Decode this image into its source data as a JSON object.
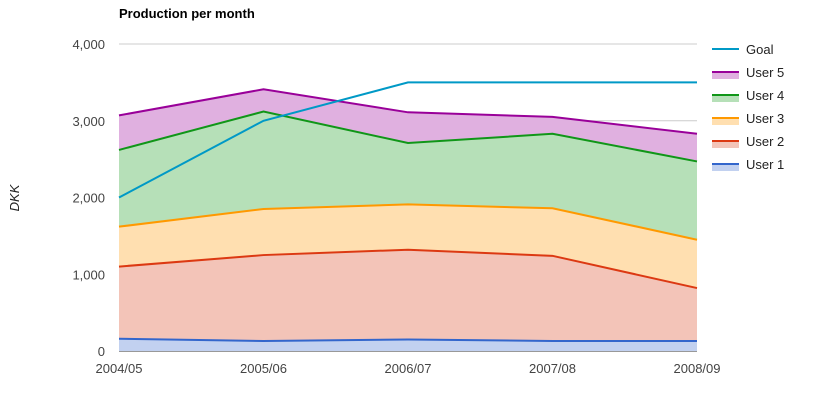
{
  "chart_data": {
    "type": "area",
    "stacked": true,
    "title": "Production per month",
    "ylabel": "DKK",
    "xlabel": "",
    "categories": [
      "2004/05",
      "2005/06",
      "2006/07",
      "2007/08",
      "2008/09"
    ],
    "ylim": [
      0,
      4000
    ],
    "yticks": [
      0,
      1000,
      2000,
      3000,
      4000
    ],
    "ytick_labels": [
      "0",
      "1,000",
      "2,000",
      "3,000",
      "4,000"
    ],
    "grid": true,
    "legend_position": "right",
    "series": [
      {
        "name": "User 1",
        "values": [
          160,
          130,
          150,
          130,
          130
        ],
        "color": "#3366cc",
        "fill": "#c2d1f0"
      },
      {
        "name": "User 2",
        "values": [
          940,
          1120,
          1170,
          1110,
          690
        ],
        "color": "#dc3912",
        "fill": "#f3c4b8"
      },
      {
        "name": "User 3",
        "values": [
          520,
          600,
          590,
          620,
          630
        ],
        "color": "#ff9900",
        "fill": "#ffdfb0"
      },
      {
        "name": "User 4",
        "values": [
          1000,
          1270,
          800,
          970,
          1020
        ],
        "color": "#109618",
        "fill": "#b6e0b8"
      },
      {
        "name": "User 5",
        "values": [
          450,
          290,
          400,
          220,
          360
        ],
        "color": "#990099",
        "fill": "#e0b0e0"
      }
    ],
    "goal": {
      "name": "Goal",
      "values": [
        2000,
        3000,
        3500,
        3500,
        3500
      ],
      "color": "#0099c6"
    },
    "legend_order": [
      "Goal",
      "User 5",
      "User 4",
      "User 3",
      "User 2",
      "User 1"
    ]
  }
}
